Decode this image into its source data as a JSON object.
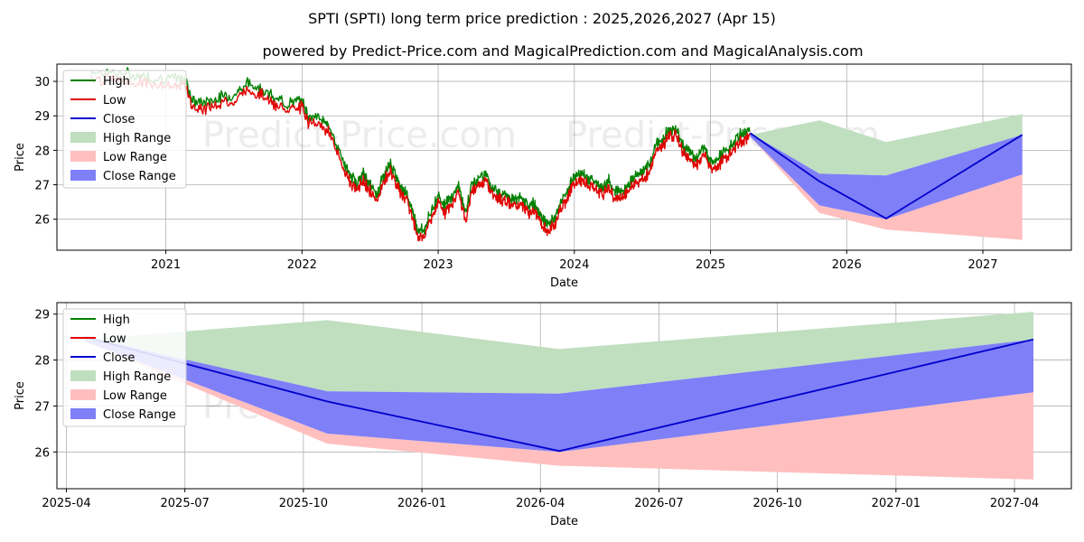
{
  "title": "SPTI (SPTI) long term price prediction : 2025,2026,2027 (Apr 15)",
  "subtitle": "powered by Predict-Price.com and MagicalPrediction.com and MagicalAnalysis.com",
  "watermark": "Predict-Price.com",
  "legend": [
    {
      "label": "High",
      "kind": "line",
      "color": "#008000"
    },
    {
      "label": "Low",
      "kind": "line",
      "color": "#e00000"
    },
    {
      "label": "Close",
      "kind": "line",
      "color": "#0000cc"
    },
    {
      "label": "High Range",
      "kind": "patch",
      "color": "#bfdfbf"
    },
    {
      "label": "Low Range",
      "kind": "patch",
      "color": "#ffbfbf"
    },
    {
      "label": "Close Range",
      "kind": "patch",
      "color": "#7f7ff7"
    }
  ],
  "chart_data": [
    {
      "type": "line",
      "name": "history-and-forecast",
      "xlabel": "Date",
      "ylabel": "Price",
      "xlim": [
        2020.2,
        2027.65
      ],
      "ylim": [
        25.1,
        30.5
      ],
      "xticks": [
        {
          "value": 2021,
          "label": "2021"
        },
        {
          "value": 2022,
          "label": "2022"
        },
        {
          "value": 2023,
          "label": "2023"
        },
        {
          "value": 2024,
          "label": "2024"
        },
        {
          "value": 2025,
          "label": "2025"
        },
        {
          "value": 2026,
          "label": "2026"
        },
        {
          "value": 2027,
          "label": "2027"
        }
      ],
      "yticks": [
        26,
        27,
        28,
        29,
        30
      ],
      "history_close": {
        "x": [
          2020.45,
          2020.6,
          2020.75,
          2020.9,
          2021.05,
          2021.15,
          2021.2,
          2021.3,
          2021.4,
          2021.5,
          2021.6,
          2021.7,
          2021.8,
          2021.9,
          2022.0,
          2022.05,
          2022.15,
          2022.2,
          2022.3,
          2022.35,
          2022.4,
          2022.45,
          2022.5,
          2022.55,
          2022.6,
          2022.65,
          2022.7,
          2022.75,
          2022.8,
          2022.85,
          2022.9,
          2022.95,
          2023.0,
          2023.05,
          2023.1,
          2023.15,
          2023.2,
          2023.25,
          2023.3,
          2023.35,
          2023.4,
          2023.45,
          2023.5,
          2023.55,
          2023.6,
          2023.65,
          2023.7,
          2023.75,
          2023.8,
          2023.85,
          2023.9,
          2023.95,
          2024.0,
          2024.05,
          2024.1,
          2024.15,
          2024.2,
          2024.25,
          2024.3,
          2024.35,
          2024.4,
          2024.45,
          2024.5,
          2024.55,
          2024.6,
          2024.65,
          2024.7,
          2024.75,
          2024.8,
          2024.85,
          2024.9,
          2024.95,
          2025.0,
          2025.05,
          2025.1,
          2025.15,
          2025.2,
          2025.25,
          2025.29
        ],
        "y": [
          30.2,
          30.15,
          30.1,
          30.0,
          30.0,
          29.9,
          29.3,
          29.3,
          29.45,
          29.5,
          29.85,
          29.7,
          29.4,
          29.25,
          29.35,
          28.9,
          28.8,
          28.6,
          27.6,
          27.2,
          26.95,
          27.2,
          26.9,
          26.6,
          27.2,
          27.5,
          27.05,
          26.75,
          26.3,
          25.6,
          25.6,
          26.15,
          26.6,
          26.3,
          26.55,
          26.9,
          26.05,
          26.95,
          27.1,
          27.25,
          26.8,
          26.7,
          26.65,
          26.45,
          26.55,
          26.3,
          26.35,
          26.0,
          25.75,
          25.9,
          26.4,
          26.7,
          27.15,
          27.2,
          27.1,
          27.0,
          26.8,
          27.05,
          26.7,
          26.7,
          26.95,
          27.15,
          27.3,
          27.45,
          28.1,
          28.2,
          28.55,
          28.5,
          28.0,
          27.8,
          27.7,
          28.0,
          27.6,
          27.65,
          27.85,
          28.0,
          28.3,
          28.4,
          28.5
        ]
      },
      "forecast": {
        "x": [
          2025.29,
          2025.8,
          2026.29,
          2027.29
        ],
        "close": [
          28.5,
          27.1,
          26.02,
          28.45
        ],
        "high_range_upper": [
          28.45,
          28.87,
          28.24,
          29.05
        ],
        "close_range_upper": [
          28.5,
          27.32,
          27.27,
          28.45
        ],
        "close_range_lower": [
          28.4,
          26.4,
          26.0,
          27.3
        ],
        "low_range_lower": [
          28.4,
          26.18,
          25.7,
          25.4
        ]
      }
    },
    {
      "type": "line",
      "name": "forecast-zoom",
      "xlabel": "Date",
      "ylabel": "Price",
      "xlim": [
        2025.23,
        2027.37
      ],
      "ylim": [
        25.2,
        29.25
      ],
      "xticks": [
        {
          "value": 2025.25,
          "label": "2025-04"
        },
        {
          "value": 2025.5,
          "label": "2025-07"
        },
        {
          "value": 2025.75,
          "label": "2025-10"
        },
        {
          "value": 2026.0,
          "label": "2026-01"
        },
        {
          "value": 2026.25,
          "label": "2026-04"
        },
        {
          "value": 2026.5,
          "label": "2026-07"
        },
        {
          "value": 2026.75,
          "label": "2026-10"
        },
        {
          "value": 2027.0,
          "label": "2027-01"
        },
        {
          "value": 2027.25,
          "label": "2027-04"
        }
      ],
      "yticks": [
        26,
        27,
        28,
        29
      ],
      "forecast": {
        "x": [
          2025.29,
          2025.8,
          2026.29,
          2027.29
        ],
        "close": [
          28.5,
          27.1,
          26.02,
          28.45
        ],
        "high_range_upper": [
          28.45,
          28.87,
          28.24,
          29.05
        ],
        "close_range_upper": [
          28.5,
          27.32,
          27.27,
          28.45
        ],
        "close_range_lower": [
          28.4,
          26.4,
          26.0,
          27.3
        ],
        "low_range_lower": [
          28.4,
          26.18,
          25.7,
          25.4
        ]
      }
    }
  ]
}
